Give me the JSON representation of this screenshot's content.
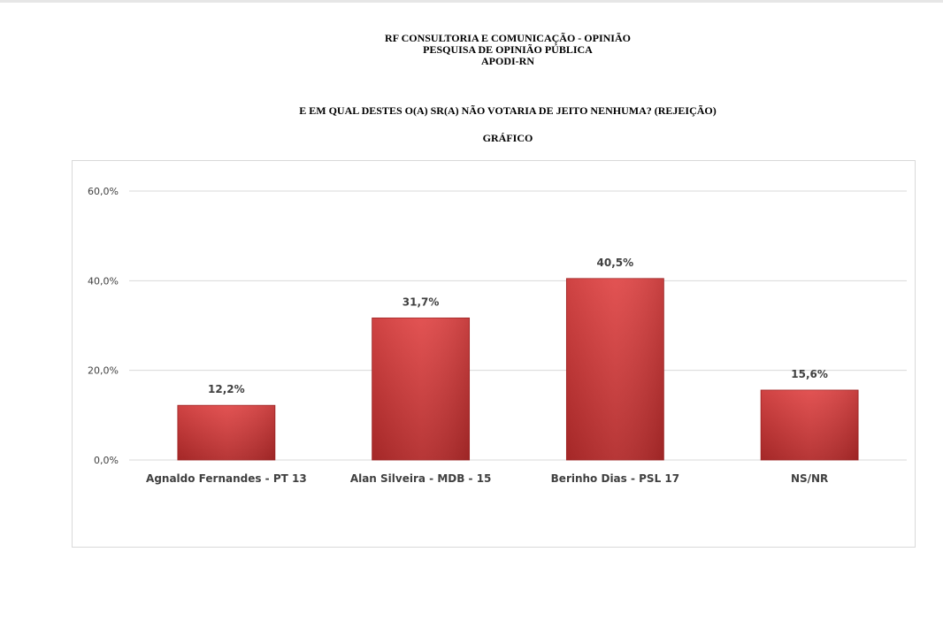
{
  "header": {
    "line1": "RF CONSULTORIA E COMUNICAÇÃO - OPINIÃO",
    "line2": "PESQUISA DE OPINIÃO PÚBLICA",
    "line3": "APODI-RN"
  },
  "question": "E EM QUAL DESTES O(A) SR(A) NÃO VOTARIA DE JEITO NENHUMA? (REJEIÇÃO)",
  "section_label": "GRÁFICO",
  "chart_data": {
    "type": "bar",
    "categories": [
      "Agnaldo Fernandes - PT 13",
      "Alan Silveira - MDB - 15",
      "Berinho Dias - PSL 17",
      "NS/NR"
    ],
    "values": [
      12.2,
      31.7,
      40.5,
      15.6
    ],
    "value_labels": [
      "12,2%",
      "31,7%",
      "40,5%",
      "15,6%"
    ],
    "yticks": [
      0,
      20,
      40,
      60
    ],
    "ytick_labels": [
      "0,0%",
      "20,0%",
      "40,0%",
      "60,0%"
    ],
    "ylim": [
      0,
      60
    ],
    "grid": true,
    "bar_color": "#d03a3a"
  }
}
